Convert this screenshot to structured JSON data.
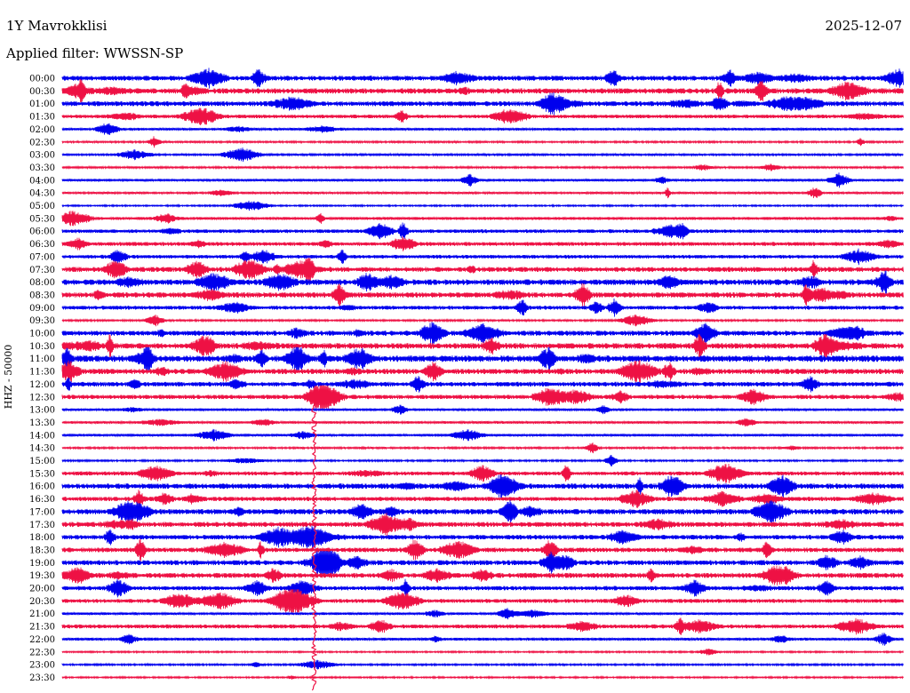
{
  "header": {
    "station": "1Y Mavrokklisi",
    "date": "2025-12-07",
    "filter": "Applied filter: WWSSN-SP"
  },
  "colors": {
    "series_a": "#0000ee",
    "series_b": "#ee1144",
    "text": "#000000",
    "background": "#ffffff"
  },
  "chart_data": {
    "type": "line",
    "title": "1Y Mavrokklisi",
    "ylabel": "HHZ - 50000",
    "xlabel": "",
    "rows": [
      {
        "label": "00:00",
        "color": "blue",
        "activity": 0.55
      },
      {
        "label": "00:30",
        "color": "red",
        "activity": 0.6
      },
      {
        "label": "01:00",
        "color": "blue",
        "activity": 0.55
      },
      {
        "label": "01:30",
        "color": "red",
        "activity": 0.35
      },
      {
        "label": "02:00",
        "color": "blue",
        "activity": 0.2
      },
      {
        "label": "02:30",
        "color": "red",
        "activity": 0.1
      },
      {
        "label": "03:00",
        "color": "blue",
        "activity": 0.12
      },
      {
        "label": "03:30",
        "color": "red",
        "activity": 0.12
      },
      {
        "label": "04:00",
        "color": "blue",
        "activity": 0.2
      },
      {
        "label": "04:30",
        "color": "red",
        "activity": 0.15
      },
      {
        "label": "05:00",
        "color": "blue",
        "activity": 0.05
      },
      {
        "label": "05:30",
        "color": "red",
        "activity": 0.25
      },
      {
        "label": "06:00",
        "color": "blue",
        "activity": 0.35
      },
      {
        "label": "06:30",
        "color": "red",
        "activity": 0.4
      },
      {
        "label": "07:00",
        "color": "blue",
        "activity": 0.35
      },
      {
        "label": "07:30",
        "color": "red",
        "activity": 0.55
      },
      {
        "label": "08:00",
        "color": "blue",
        "activity": 0.65
      },
      {
        "label": "08:30",
        "color": "red",
        "activity": 0.6
      },
      {
        "label": "09:00",
        "color": "blue",
        "activity": 0.4
      },
      {
        "label": "09:30",
        "color": "red",
        "activity": 0.1
      },
      {
        "label": "10:00",
        "color": "blue",
        "activity": 0.55
      },
      {
        "label": "10:30",
        "color": "red",
        "activity": 0.65
      },
      {
        "label": "11:00",
        "color": "blue",
        "activity": 0.75
      },
      {
        "label": "11:30",
        "color": "red",
        "activity": 0.6
      },
      {
        "label": "12:00",
        "color": "blue",
        "activity": 0.5
      },
      {
        "label": "12:30",
        "color": "red",
        "activity": 0.45
      },
      {
        "label": "13:00",
        "color": "blue",
        "activity": 0.2
      },
      {
        "label": "13:30",
        "color": "red",
        "activity": 0.2
      },
      {
        "label": "14:00",
        "color": "blue",
        "activity": 0.2
      },
      {
        "label": "14:30",
        "color": "red",
        "activity": 0.1
      },
      {
        "label": "15:00",
        "color": "blue",
        "activity": 0.08
      },
      {
        "label": "15:30",
        "color": "red",
        "activity": 0.4
      },
      {
        "label": "16:00",
        "color": "blue",
        "activity": 0.6
      },
      {
        "label": "16:30",
        "color": "red",
        "activity": 0.45
      },
      {
        "label": "17:00",
        "color": "blue",
        "activity": 0.6
      },
      {
        "label": "17:30",
        "color": "red",
        "activity": 0.55
      },
      {
        "label": "18:00",
        "color": "blue",
        "activity": 0.5
      },
      {
        "label": "18:30",
        "color": "red",
        "activity": 0.5
      },
      {
        "label": "19:00",
        "color": "blue",
        "activity": 0.55
      },
      {
        "label": "19:30",
        "color": "red",
        "activity": 0.55
      },
      {
        "label": "20:00",
        "color": "blue",
        "activity": 0.45
      },
      {
        "label": "20:30",
        "color": "red",
        "activity": 0.4
      },
      {
        "label": "21:00",
        "color": "blue",
        "activity": 0.2
      },
      {
        "label": "21:30",
        "color": "red",
        "activity": 0.4
      },
      {
        "label": "22:00",
        "color": "blue",
        "activity": 0.25
      },
      {
        "label": "22:30",
        "color": "red",
        "activity": 0.05
      },
      {
        "label": "23:00",
        "color": "blue",
        "activity": 0.08
      },
      {
        "label": "23:30",
        "color": "red",
        "activity": 0.05
      }
    ]
  }
}
